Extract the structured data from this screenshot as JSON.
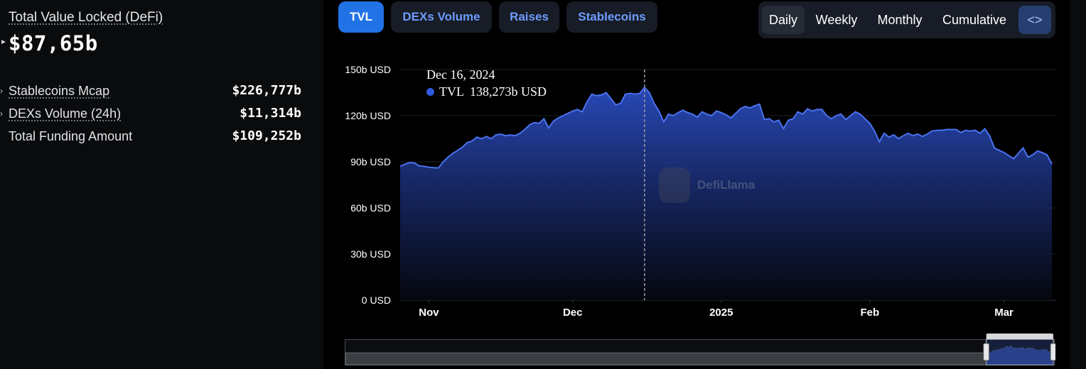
{
  "summary": {
    "tvl_label": "Total Value Locked (DeFi)",
    "tvl_value": "$87,65b",
    "stats": [
      {
        "label": "Stablecoins Mcap",
        "value": "$226,777b",
        "expandable": true
      },
      {
        "label": "DEXs Volume (24h)",
        "value": "$11,314b",
        "expandable": true
      },
      {
        "label": "Total Funding Amount",
        "value": "$109,252b",
        "expandable": false
      }
    ]
  },
  "tabs": [
    {
      "label": "TVL",
      "active": true
    },
    {
      "label": "DEXs Volume",
      "active": false
    },
    {
      "label": "Raises",
      "active": false
    },
    {
      "label": "Stablecoins",
      "active": false
    }
  ],
  "periods": [
    {
      "label": "Daily",
      "active": true
    },
    {
      "label": "Weekly",
      "active": false
    },
    {
      "label": "Monthly",
      "active": false
    },
    {
      "label": "Cumulative",
      "active": false
    }
  ],
  "embed": {
    "icon": "code-icon",
    "glyph": "<>"
  },
  "tooltip": {
    "date": "Dec 16, 2024",
    "series": "TVL",
    "value": "138,273b USD"
  },
  "watermark": {
    "text": "DefiLlama",
    "icon": "llama-logo-icon"
  },
  "colors": {
    "line": "#4a72f0",
    "accent": "#2172e5",
    "tab_text": "#6e9cff"
  },
  "chart_data": {
    "type": "area",
    "series": [
      {
        "name": "TVL"
      }
    ],
    "ylim": [
      0,
      150
    ],
    "y_ticks": [
      0,
      30,
      60,
      90,
      120,
      150
    ],
    "y_tick_labels": [
      "0 USD",
      "30b USD",
      "60b USD",
      "90b USD",
      "120b USD",
      "150b USD"
    ],
    "x_tick_labels": [
      "Nov",
      "Dec",
      "2025",
      "Feb",
      "Mar"
    ],
    "x_tick_dates": [
      "2024-11-01",
      "2024-12-01",
      "2025-01-01",
      "2025-02-01",
      "2025-03-01"
    ],
    "x_range": [
      "2024-10-26",
      "2025-03-11"
    ],
    "highlight_date": "2024-12-16",
    "grid": true,
    "points": [
      [
        "2024-10-26",
        87.0
      ],
      [
        "2024-10-27",
        88.5
      ],
      [
        "2024-10-28",
        89.5
      ],
      [
        "2024-10-29",
        89.2
      ],
      [
        "2024-10-30",
        87.3
      ],
      [
        "2024-10-31",
        87.0
      ],
      [
        "2024-11-01",
        86.5
      ],
      [
        "2024-11-02",
        86.2
      ],
      [
        "2024-11-03",
        86.0
      ],
      [
        "2024-11-04",
        90.0
      ],
      [
        "2024-11-05",
        93.0
      ],
      [
        "2024-11-06",
        95.5
      ],
      [
        "2024-11-07",
        97.5
      ],
      [
        "2024-11-08",
        99.5
      ],
      [
        "2024-11-09",
        102.5
      ],
      [
        "2024-11-10",
        103.5
      ],
      [
        "2024-11-11",
        106.0
      ],
      [
        "2024-11-12",
        105.0
      ],
      [
        "2024-11-13",
        106.5
      ],
      [
        "2024-11-14",
        105.0
      ],
      [
        "2024-11-15",
        107.5
      ],
      [
        "2024-11-16",
        108.0
      ],
      [
        "2024-11-17",
        107.0
      ],
      [
        "2024-11-18",
        107.5
      ],
      [
        "2024-11-19",
        107.0
      ],
      [
        "2024-11-20",
        108.5
      ],
      [
        "2024-11-21",
        111.0
      ],
      [
        "2024-11-22",
        114.0
      ],
      [
        "2024-11-23",
        115.5
      ],
      [
        "2024-11-24",
        115.0
      ],
      [
        "2024-11-25",
        118.0
      ],
      [
        "2024-11-26",
        112.0
      ],
      [
        "2024-11-27",
        116.5
      ],
      [
        "2024-11-28",
        118.5
      ],
      [
        "2024-11-29",
        120.0
      ],
      [
        "2024-11-30",
        121.5
      ],
      [
        "2024-12-01",
        123.0
      ],
      [
        "2024-12-02",
        124.0
      ],
      [
        "2024-12-03",
        122.5
      ],
      [
        "2024-12-04",
        129.0
      ],
      [
        "2024-12-05",
        134.0
      ],
      [
        "2024-12-06",
        133.0
      ],
      [
        "2024-12-07",
        133.5
      ],
      [
        "2024-12-08",
        135.0
      ],
      [
        "2024-12-09",
        131.0
      ],
      [
        "2024-12-10",
        127.0
      ],
      [
        "2024-12-11",
        128.0
      ],
      [
        "2024-12-12",
        134.0
      ],
      [
        "2024-12-13",
        134.5
      ],
      [
        "2024-12-14",
        134.0
      ],
      [
        "2024-12-15",
        134.5
      ],
      [
        "2024-12-16",
        138.3
      ],
      [
        "2024-12-17",
        135.0
      ],
      [
        "2024-12-18",
        128.0
      ],
      [
        "2024-12-19",
        123.0
      ],
      [
        "2024-12-20",
        116.0
      ],
      [
        "2024-12-21",
        121.0
      ],
      [
        "2024-12-22",
        120.0
      ],
      [
        "2024-12-23",
        122.0
      ],
      [
        "2024-12-24",
        123.5
      ],
      [
        "2024-12-25",
        122.0
      ],
      [
        "2024-12-26",
        121.0
      ],
      [
        "2024-12-27",
        119.0
      ],
      [
        "2024-12-28",
        122.5
      ],
      [
        "2024-12-29",
        121.0
      ],
      [
        "2024-12-30",
        120.0
      ],
      [
        "2024-12-31",
        123.0
      ],
      [
        "2025-01-01",
        122.0
      ],
      [
        "2025-01-02",
        120.5
      ],
      [
        "2025-01-03",
        118.5
      ],
      [
        "2025-01-04",
        121.5
      ],
      [
        "2025-01-05",
        124.5
      ],
      [
        "2025-01-06",
        126.0
      ],
      [
        "2025-01-07",
        125.0
      ],
      [
        "2025-01-08",
        126.5
      ],
      [
        "2025-01-09",
        127.5
      ],
      [
        "2025-01-10",
        117.5
      ],
      [
        "2025-01-11",
        118.0
      ],
      [
        "2025-01-12",
        116.0
      ],
      [
        "2025-01-13",
        117.0
      ],
      [
        "2025-01-14",
        111.5
      ],
      [
        "2025-01-15",
        117.0
      ],
      [
        "2025-01-16",
        118.0
      ],
      [
        "2025-01-17",
        122.5
      ],
      [
        "2025-01-18",
        121.0
      ],
      [
        "2025-01-19",
        124.5
      ],
      [
        "2025-01-20",
        123.0
      ],
      [
        "2025-01-21",
        124.0
      ],
      [
        "2025-01-22",
        124.0
      ],
      [
        "2025-01-23",
        120.0
      ],
      [
        "2025-01-24",
        118.0
      ],
      [
        "2025-01-25",
        120.0
      ],
      [
        "2025-01-26",
        121.0
      ],
      [
        "2025-01-27",
        117.5
      ],
      [
        "2025-01-28",
        120.0
      ],
      [
        "2025-01-29",
        122.5
      ],
      [
        "2025-01-30",
        121.0
      ],
      [
        "2025-01-31",
        118.0
      ],
      [
        "2025-02-01",
        115.0
      ],
      [
        "2025-02-02",
        110.0
      ],
      [
        "2025-02-03",
        103.0
      ],
      [
        "2025-02-04",
        108.5
      ],
      [
        "2025-02-05",
        106.0
      ],
      [
        "2025-02-06",
        107.5
      ],
      [
        "2025-02-07",
        105.0
      ],
      [
        "2025-02-08",
        107.0
      ],
      [
        "2025-02-09",
        108.5
      ],
      [
        "2025-02-10",
        107.0
      ],
      [
        "2025-02-11",
        108.0
      ],
      [
        "2025-02-12",
        106.5
      ],
      [
        "2025-02-13",
        108.0
      ],
      [
        "2025-02-14",
        110.0
      ],
      [
        "2025-02-15",
        110.5
      ],
      [
        "2025-02-16",
        110.5
      ],
      [
        "2025-02-17",
        111.0
      ],
      [
        "2025-02-18",
        111.0
      ],
      [
        "2025-02-19",
        111.0
      ],
      [
        "2025-02-20",
        109.0
      ],
      [
        "2025-02-21",
        110.5
      ],
      [
        "2025-02-22",
        110.0
      ],
      [
        "2025-02-23",
        110.5
      ],
      [
        "2025-02-24",
        108.5
      ],
      [
        "2025-02-25",
        111.5
      ],
      [
        "2025-02-26",
        107.0
      ],
      [
        "2025-02-27",
        99.0
      ],
      [
        "2025-02-28",
        97.5
      ],
      [
        "2025-03-01",
        96.0
      ],
      [
        "2025-03-02",
        94.0
      ],
      [
        "2025-03-03",
        92.0
      ],
      [
        "2025-03-04",
        95.5
      ],
      [
        "2025-03-05",
        99.0
      ],
      [
        "2025-03-06",
        93.0
      ],
      [
        "2025-03-07",
        94.5
      ],
      [
        "2025-03-08",
        97.0
      ],
      [
        "2025-03-09",
        96.0
      ],
      [
        "2025-03-10",
        94.5
      ],
      [
        "2025-03-11",
        88.5
      ]
    ]
  }
}
